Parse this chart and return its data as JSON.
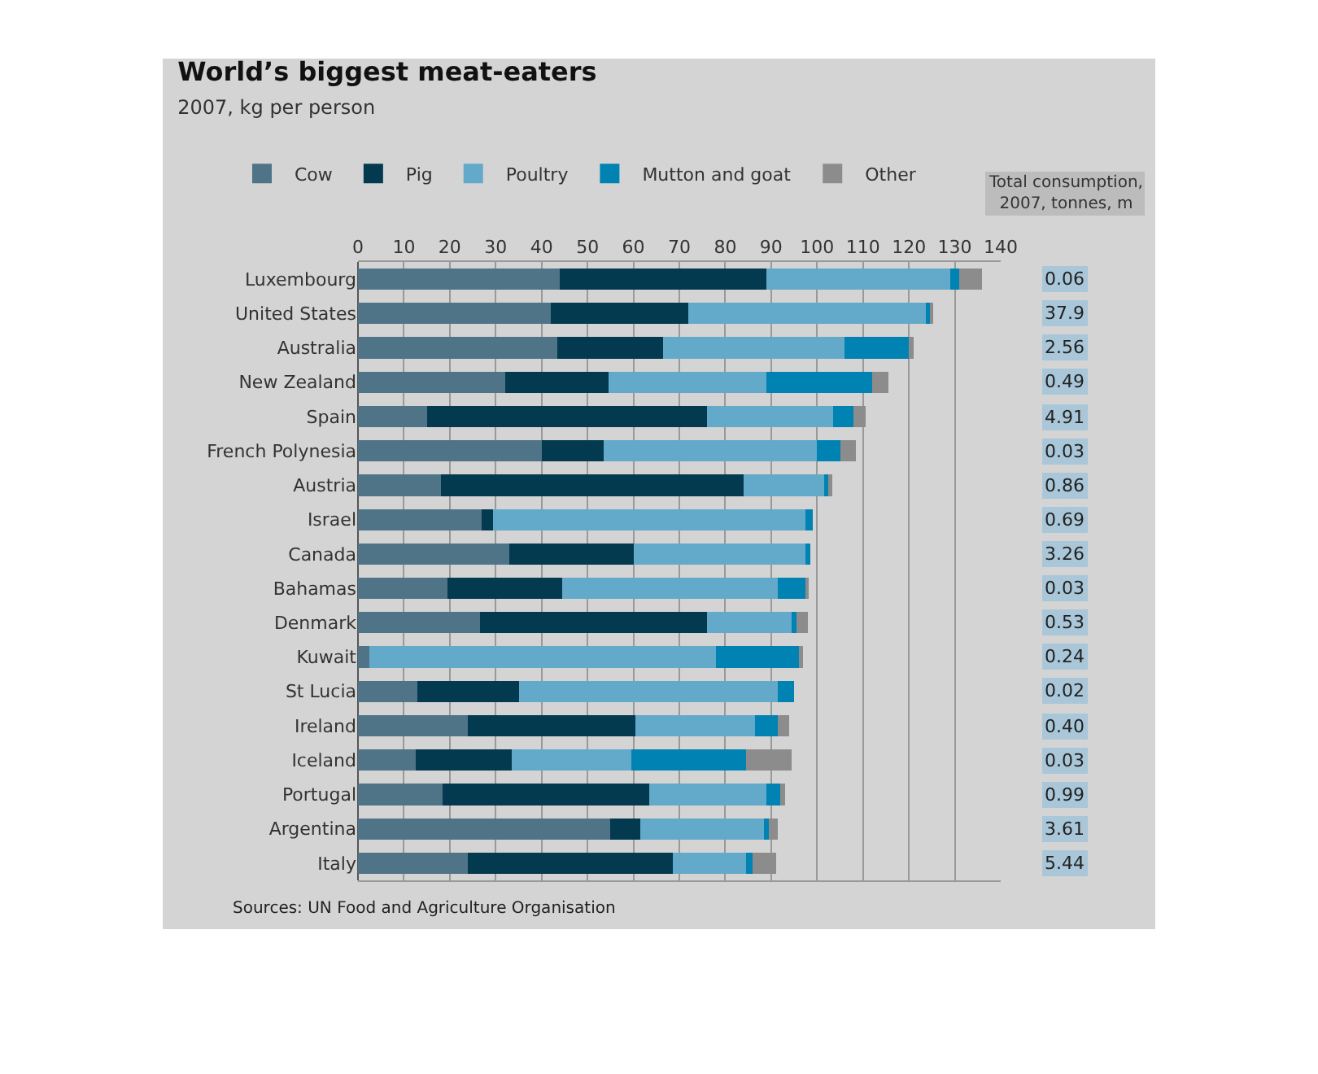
{
  "chart_data": {
    "type": "bar",
    "orientation": "horizontal",
    "stacked": true,
    "title": "World’s biggest meat-eaters",
    "subtitle": "2007, kg per person",
    "categories": [
      "Luxembourg",
      "United States",
      "Australia",
      "New Zealand",
      "Spain",
      "French Polynesia",
      "Austria",
      "Israel",
      "Canada",
      "Bahamas",
      "Denmark",
      "Kuwait",
      "St Lucia",
      "Ireland",
      "Iceland",
      "Portugal",
      "Argentina",
      "Italy"
    ],
    "series": [
      {
        "name": "Cow",
        "color": "#4f7387",
        "values": [
          44,
          42,
          43.5,
          32,
          15,
          40,
          18,
          27,
          33,
          19.5,
          26.5,
          2.5,
          13,
          24,
          12.5,
          18.5,
          55,
          24
        ]
      },
      {
        "name": "Pig",
        "color": "#033a4f",
        "values": [
          45,
          30,
          23,
          22.5,
          61,
          13.5,
          66,
          2.5,
          27,
          25,
          49.5,
          0,
          22,
          36.5,
          21,
          45,
          6.5,
          44.5
        ]
      },
      {
        "name": "Poultry",
        "color": "#63a9c9",
        "values": [
          40,
          52,
          39.5,
          34.5,
          27.5,
          46.5,
          17.5,
          68,
          37.5,
          47,
          18.5,
          75.5,
          56.5,
          26,
          26,
          25.5,
          27,
          16
        ]
      },
      {
        "name": "Mutton and goat",
        "color": "#0083b3",
        "values": [
          2,
          0.5,
          14,
          23,
          4.5,
          5,
          1,
          1.5,
          1,
          6,
          1,
          18,
          3.5,
          5,
          25,
          3,
          1,
          1.5
        ]
      },
      {
        "name": "Other",
        "color": "#8c8c8c",
        "values": [
          5,
          0.8,
          1,
          3.5,
          2.5,
          3.5,
          0.8,
          0,
          0,
          0.7,
          2.5,
          1,
          0,
          2.5,
          10,
          1,
          2,
          5
        ]
      }
    ],
    "xlim": [
      0,
      140
    ],
    "xticks": [
      0,
      10,
      20,
      30,
      40,
      50,
      60,
      70,
      80,
      90,
      100,
      110,
      120,
      130,
      140
    ],
    "grid": "x",
    "legend": "top left",
    "annotations": [
      "Total consumption, 2007, tonnes, m",
      "0.06",
      "37.9",
      "2.56",
      "0.49",
      "4.91",
      "0.03",
      "0.86",
      "0.69",
      "3.26",
      "0.03",
      "0.53",
      "0.24",
      "0.02",
      "0.40",
      "0.03",
      "0.99",
      "3.61",
      "5.44",
      "Sources: UN Food and Agriculture Organisation"
    ]
  }
}
